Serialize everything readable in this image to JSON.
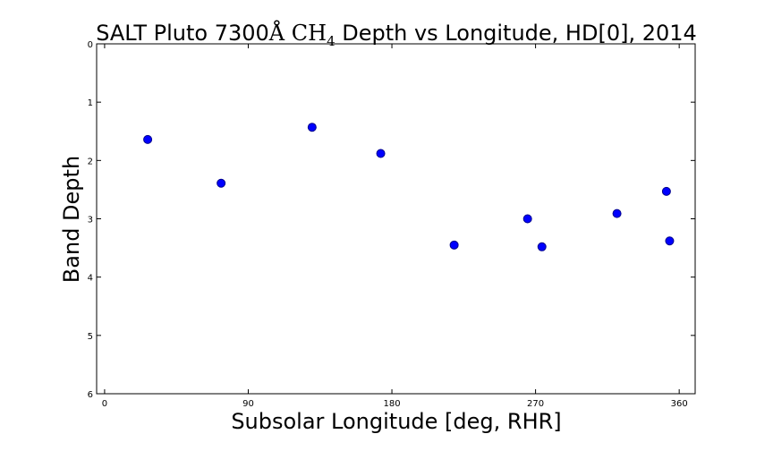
{
  "chart_data": {
    "type": "scatter",
    "title_parts": {
      "prefix": "SALT Pluto 7300",
      "angstrom": "Å",
      "ch": " CH",
      "subscript": "4",
      "suffix": " Depth vs Longitude, HD[0], 2014"
    },
    "xlabel": "Subsolar Longitude [deg, RHR]",
    "ylabel": "Band Depth",
    "xlim": [
      -5,
      370
    ],
    "ylim": [
      0,
      6
    ],
    "y_inverted": true,
    "grid": false,
    "xticks": [
      0,
      90,
      180,
      270,
      360
    ],
    "yticks": [
      0,
      1,
      2,
      3,
      4,
      5,
      6
    ],
    "marker_color": "#0000ff",
    "points": [
      {
        "x": 27,
        "y": 1.64
      },
      {
        "x": 73,
        "y": 2.39
      },
      {
        "x": 130,
        "y": 1.43
      },
      {
        "x": 173,
        "y": 1.88
      },
      {
        "x": 219,
        "y": 3.45
      },
      {
        "x": 265,
        "y": 3.0
      },
      {
        "x": 274,
        "y": 3.48
      },
      {
        "x": 321,
        "y": 2.91
      },
      {
        "x": 352,
        "y": 2.53
      },
      {
        "x": 354,
        "y": 3.38
      }
    ]
  }
}
